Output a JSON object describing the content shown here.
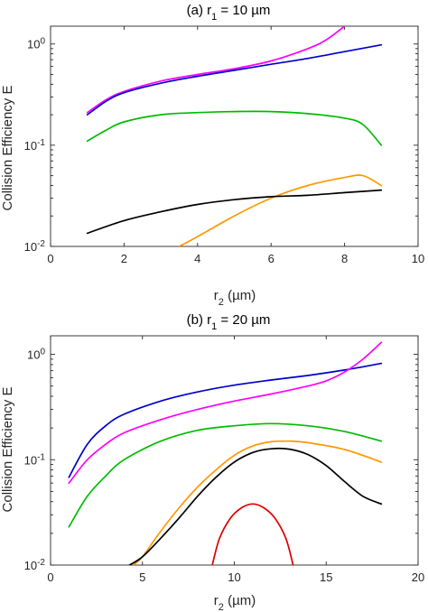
{
  "chart_data": [
    {
      "type": "line",
      "title": {
        "prefix": "(a) r",
        "sub": "1",
        "suffix": " = 10 µm"
      },
      "xlabel": {
        "prefix": "r",
        "sub": "2",
        "suffix": " (µm)"
      },
      "ylabel": "Collision Efficiency E",
      "xlim": [
        0,
        10
      ],
      "ylim": [
        0.01,
        1.5
      ],
      "yscale": "log",
      "xticks": [
        0,
        2,
        4,
        6,
        8,
        10
      ],
      "xtick_labels": [
        "0",
        "2",
        "4",
        "6",
        "8",
        "10"
      ],
      "yticks": [
        {
          "value": 1,
          "base": "10",
          "exp": "0"
        },
        {
          "value": 0.1,
          "base": "10",
          "exp": "-1"
        },
        {
          "value": 0.01,
          "base": "10",
          "exp": "-2"
        }
      ],
      "series": [
        {
          "color": "#ff00ff",
          "x": [
            1,
            1.5,
            2,
            3,
            4,
            5,
            6,
            7,
            7.5,
            8.0
          ],
          "y": [
            0.21,
            0.28,
            0.34,
            0.43,
            0.5,
            0.57,
            0.68,
            0.9,
            1.1,
            1.5
          ]
        },
        {
          "color": "#0000cc",
          "x": [
            1,
            1.5,
            2,
            3,
            4,
            5,
            6,
            7,
            8,
            9
          ],
          "y": [
            0.2,
            0.27,
            0.33,
            0.41,
            0.48,
            0.55,
            0.63,
            0.72,
            0.84,
            0.98
          ]
        },
        {
          "color": "#00bb00",
          "x": [
            1,
            1.5,
            2,
            3,
            4,
            5,
            6,
            7,
            8,
            8.5,
            9
          ],
          "y": [
            0.11,
            0.14,
            0.17,
            0.2,
            0.21,
            0.215,
            0.215,
            0.205,
            0.185,
            0.16,
            0.1
          ]
        },
        {
          "color": "#ff9900",
          "x": [
            3.5,
            4,
            5,
            6,
            7,
            8,
            8.5,
            9
          ],
          "y": [
            0.01,
            0.0125,
            0.02,
            0.03,
            0.04,
            0.048,
            0.05,
            0.04
          ]
        },
        {
          "color": "#000000",
          "x": [
            1,
            2,
            3,
            4,
            5,
            6,
            7,
            8,
            9
          ],
          "y": [
            0.0135,
            0.018,
            0.022,
            0.026,
            0.029,
            0.031,
            0.032,
            0.034,
            0.036
          ]
        }
      ]
    },
    {
      "type": "line",
      "title": {
        "prefix": "(b) r",
        "sub": "1",
        "suffix": " = 20 µm"
      },
      "xlabel": {
        "prefix": "r",
        "sub": "2",
        "suffix": " (µm)"
      },
      "ylabel": "Collision Efficiency E",
      "xlim": [
        0,
        20
      ],
      "ylim": [
        0.01,
        1.5
      ],
      "yscale": "log",
      "xticks": [
        0,
        5,
        10,
        15,
        20
      ],
      "xtick_labels": [
        "0",
        "5",
        "10",
        "15",
        "20"
      ],
      "yticks": [
        {
          "value": 1,
          "base": "10",
          "exp": "0"
        },
        {
          "value": 0.1,
          "base": "10",
          "exp": "-1"
        },
        {
          "value": 0.01,
          "base": "10",
          "exp": "-2"
        }
      ],
      "series": [
        {
          "color": "#0000cc",
          "x": [
            1,
            2,
            3,
            4,
            6,
            8,
            10,
            12,
            14,
            16,
            18
          ],
          "y": [
            0.068,
            0.14,
            0.21,
            0.27,
            0.36,
            0.44,
            0.51,
            0.57,
            0.63,
            0.71,
            0.82
          ]
        },
        {
          "color": "#ff00ff",
          "x": [
            1,
            2,
            3,
            4,
            6,
            8,
            10,
            12,
            14,
            15,
            16,
            17,
            18
          ],
          "y": [
            0.06,
            0.1,
            0.14,
            0.18,
            0.24,
            0.3,
            0.36,
            0.42,
            0.5,
            0.56,
            0.68,
            0.9,
            1.3
          ]
        },
        {
          "color": "#00bb00",
          "x": [
            1,
            2,
            3,
            4,
            6,
            8,
            10,
            12,
            14,
            16,
            18
          ],
          "y": [
            0.023,
            0.045,
            0.07,
            0.1,
            0.15,
            0.19,
            0.21,
            0.22,
            0.21,
            0.185,
            0.15
          ]
        },
        {
          "color": "#ff9900",
          "x": [
            4.5,
            5,
            6,
            7,
            8,
            9,
            10,
            11,
            12,
            13,
            14,
            16,
            18
          ],
          "y": [
            0.01,
            0.012,
            0.021,
            0.035,
            0.055,
            0.08,
            0.11,
            0.135,
            0.148,
            0.15,
            0.145,
            0.125,
            0.095
          ]
        },
        {
          "color": "#000000",
          "x": [
            4.3,
            5,
            6,
            7,
            8,
            9,
            10,
            11,
            12,
            13,
            14,
            15,
            16,
            17,
            18
          ],
          "y": [
            0.01,
            0.012,
            0.018,
            0.028,
            0.045,
            0.068,
            0.095,
            0.117,
            0.127,
            0.126,
            0.112,
            0.088,
            0.062,
            0.045,
            0.038
          ]
        },
        {
          "color": "#dd0000",
          "x": [
            8.8,
            9.2,
            9.8,
            10.4,
            11,
            11.6,
            12.2,
            12.8,
            13.2
          ],
          "y": [
            0.01,
            0.018,
            0.028,
            0.035,
            0.038,
            0.035,
            0.028,
            0.018,
            0.01
          ]
        }
      ]
    }
  ]
}
